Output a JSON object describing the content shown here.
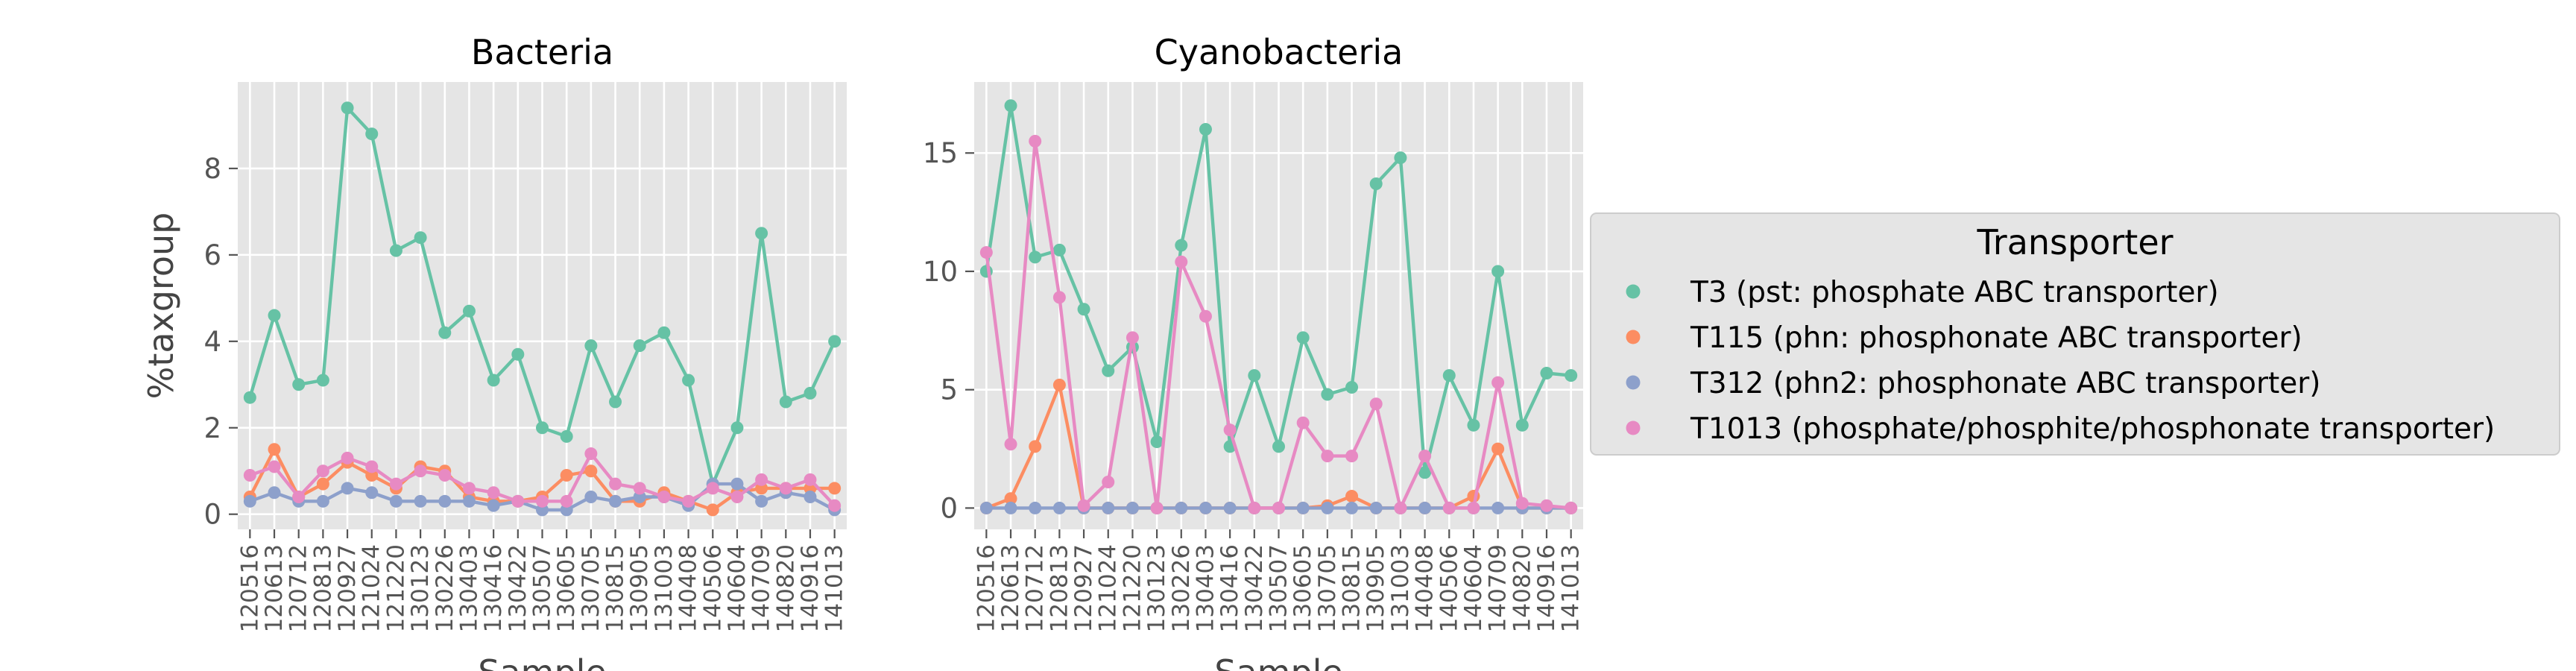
{
  "chart_data": [
    {
      "type": "line",
      "title": "Bacteria",
      "xlabel": "Sample",
      "ylabel": "%taxgroup",
      "ylim": [
        -0.35,
        10.0
      ],
      "yticks": [
        0,
        2,
        4,
        6,
        8
      ],
      "grid": true,
      "categories": [
        "120516",
        "120613",
        "120712",
        "120813",
        "120927",
        "121024",
        "121220",
        "130123",
        "130226",
        "130403",
        "130416",
        "130422",
        "130507",
        "130605",
        "130705",
        "130815",
        "130905",
        "131003",
        "140408",
        "140506",
        "140604",
        "140709",
        "140820",
        "140916",
        "141013"
      ],
      "series": [
        {
          "name": "T3 (pst: phosphate ABC transporter)",
          "color": "#66c2a5",
          "values": [
            2.7,
            4.6,
            3.0,
            3.1,
            9.4,
            8.8,
            6.1,
            6.4,
            4.2,
            4.7,
            3.1,
            3.7,
            2.0,
            1.8,
            3.9,
            2.6,
            3.9,
            4.2,
            3.1,
            0.7,
            2.0,
            6.5,
            2.6,
            2.8,
            4.0
          ]
        },
        {
          "name": "T115 (phn: phosphonate ABC transporter)",
          "color": "#fc8d62",
          "values": [
            0.4,
            1.5,
            0.4,
            0.7,
            1.2,
            0.9,
            0.6,
            1.1,
            1.0,
            0.4,
            0.3,
            0.3,
            0.4,
            0.9,
            1.0,
            0.3,
            0.3,
            0.5,
            0.3,
            0.1,
            0.5,
            0.6,
            0.6,
            0.6,
            0.6
          ]
        },
        {
          "name": "T312 (phn2: phosphonate ABC transporter)",
          "color": "#8da0cb",
          "values": [
            0.3,
            0.5,
            0.3,
            0.3,
            0.6,
            0.5,
            0.3,
            0.3,
            0.3,
            0.3,
            0.2,
            0.3,
            0.1,
            0.1,
            0.4,
            0.3,
            0.4,
            0.4,
            0.2,
            0.7,
            0.7,
            0.3,
            0.5,
            0.4,
            0.1
          ]
        },
        {
          "name": "T1013 (phosphate/phosphite/phosphonate transporter)",
          "color": "#e78ac3",
          "values": [
            0.9,
            1.1,
            0.4,
            1.0,
            1.3,
            1.1,
            0.7,
            1.0,
            0.9,
            0.6,
            0.5,
            0.3,
            0.3,
            0.3,
            1.4,
            0.7,
            0.6,
            0.4,
            0.3,
            0.6,
            0.4,
            0.8,
            0.6,
            0.8,
            0.2
          ]
        }
      ]
    },
    {
      "type": "line",
      "title": "Cyanobacteria",
      "xlabel": "Sample",
      "ylabel": "",
      "ylim": [
        -0.9,
        18.0
      ],
      "yticks": [
        0,
        5,
        10,
        15
      ],
      "grid": true,
      "categories": [
        "120516",
        "120613",
        "120712",
        "120813",
        "120927",
        "121024",
        "121220",
        "130123",
        "130226",
        "130403",
        "130416",
        "130422",
        "130507",
        "130605",
        "130705",
        "130815",
        "130905",
        "131003",
        "140408",
        "140506",
        "140604",
        "140709",
        "140820",
        "140916",
        "141013"
      ],
      "series": [
        {
          "name": "T3 (pst: phosphate ABC transporter)",
          "color": "#66c2a5",
          "values": [
            10.0,
            17.0,
            10.6,
            10.9,
            8.4,
            5.8,
            6.8,
            2.8,
            11.1,
            16.0,
            2.6,
            5.6,
            2.6,
            7.2,
            4.8,
            5.1,
            13.7,
            14.8,
            1.5,
            5.6,
            3.5,
            10.0,
            3.5,
            5.7,
            5.6
          ]
        },
        {
          "name": "T115 (phn: phosphonate ABC transporter)",
          "color": "#fc8d62",
          "values": [
            0.0,
            0.4,
            2.6,
            5.2,
            0.0,
            0.0,
            0.0,
            0.0,
            0.0,
            0.0,
            0.0,
            0.0,
            0.0,
            0.0,
            0.1,
            0.5,
            0.0,
            0.0,
            0.0,
            0.0,
            0.5,
            2.5,
            0.0,
            0.0,
            0.0
          ]
        },
        {
          "name": "T312 (phn2: phosphonate ABC transporter)",
          "color": "#8da0cb",
          "values": [
            0.0,
            0.0,
            0.0,
            0.0,
            0.0,
            0.0,
            0.0,
            0.0,
            0.0,
            0.0,
            0.0,
            0.0,
            0.0,
            0.0,
            0.0,
            0.0,
            0.0,
            0.0,
            0.0,
            0.0,
            0.0,
            0.0,
            0.0,
            0.0,
            0.0
          ]
        },
        {
          "name": "T1013 (phosphate/phosphite/phosphonate transporter)",
          "color": "#e78ac3",
          "values": [
            10.8,
            2.7,
            15.5,
            8.9,
            0.1,
            1.1,
            7.2,
            0.0,
            10.4,
            8.1,
            3.3,
            0.0,
            0.0,
            3.6,
            2.2,
            2.2,
            4.4,
            0.0,
            2.2,
            0.0,
            0.0,
            5.3,
            0.2,
            0.1,
            0.0
          ]
        }
      ]
    }
  ],
  "legend": {
    "title": "Transporter",
    "placement": "right"
  }
}
